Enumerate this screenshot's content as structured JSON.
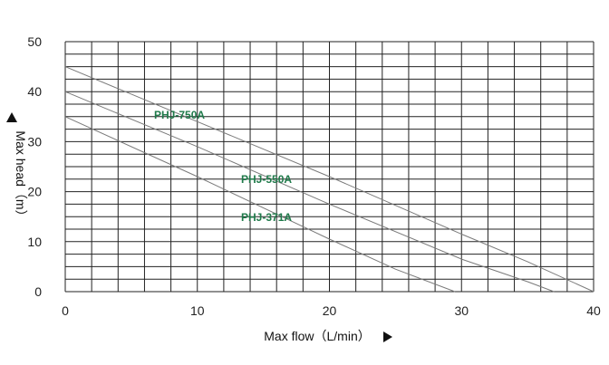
{
  "chart_data": {
    "type": "line",
    "xlabel": "Max flow（L/min）",
    "ylabel": "Max head（m）",
    "xlim": [
      0,
      40
    ],
    "ylim": [
      0,
      50
    ],
    "x_ticks": [
      0,
      10,
      20,
      30,
      40
    ],
    "y_ticks": [
      0,
      10,
      20,
      30,
      40,
      50
    ],
    "grid": true,
    "series": [
      {
        "name": "PHJ-750A",
        "x": [
          0,
          10,
          20,
          30,
          35,
          40
        ],
        "y": [
          45,
          34,
          23,
          11.5,
          6,
          0
        ]
      },
      {
        "name": "PHJ-550A",
        "x": [
          0,
          10,
          20,
          30,
          35,
          37
        ],
        "y": [
          40,
          29,
          17.5,
          6.5,
          2,
          0
        ]
      },
      {
        "name": "PHJ-371A",
        "x": [
          0,
          10,
          20,
          25,
          29.5
        ],
        "y": [
          35,
          23,
          10.5,
          4.5,
          0
        ]
      }
    ]
  }
}
